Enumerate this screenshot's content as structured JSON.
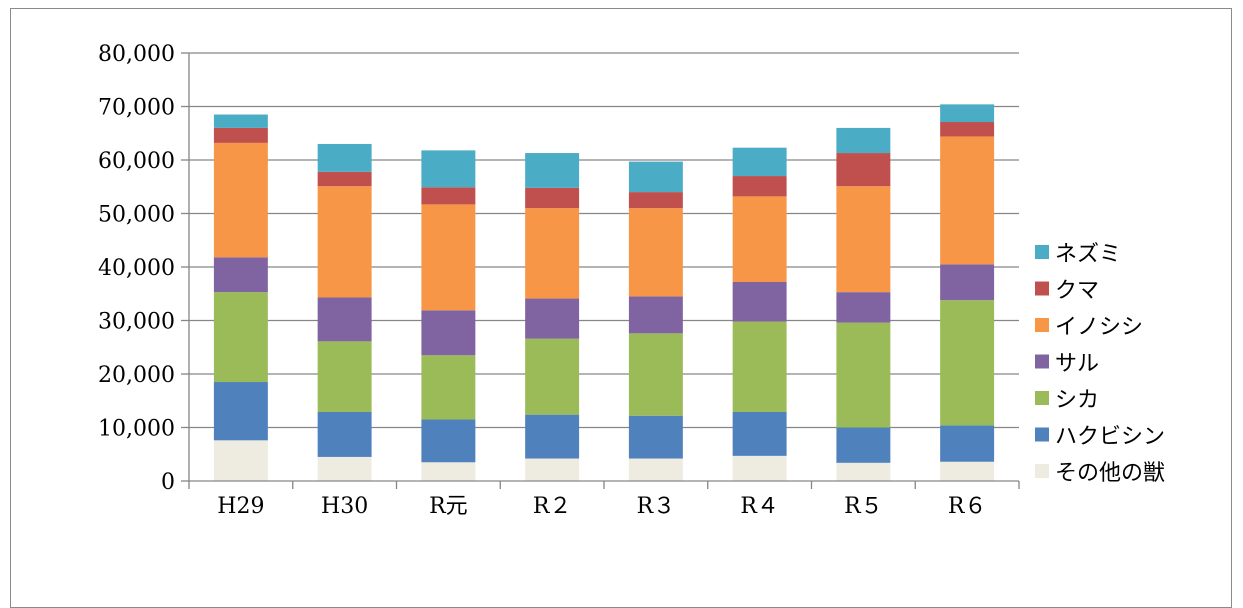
{
  "chart_data": {
    "type": "bar",
    "stacked": true,
    "title": "",
    "xlabel": "",
    "ylabel": "",
    "ylim": [
      0,
      80000
    ],
    "yticks": [
      0,
      10000,
      20000,
      30000,
      40000,
      50000,
      60000,
      70000,
      80000
    ],
    "ytick_labels": [
      "0",
      "10,000",
      "20,000",
      "30,000",
      "40,000",
      "50,000",
      "60,000",
      "70,000",
      "80,000"
    ],
    "grid": true,
    "legend_position": "right",
    "categories": [
      "H29",
      "H30",
      "R元",
      "R２",
      "R３",
      "R４",
      "R５",
      "R６"
    ],
    "series": [
      {
        "name": "その他の獣",
        "color": "#eeece1",
        "values": [
          7600,
          4500,
          3500,
          4200,
          4200,
          4700,
          3400,
          3600
        ]
      },
      {
        "name": "ハクビシン",
        "color": "#4f81bd",
        "values": [
          10900,
          8400,
          8000,
          8200,
          8000,
          8200,
          6600,
          6800
        ]
      },
      {
        "name": "シカ",
        "color": "#9bbb59",
        "values": [
          16800,
          13200,
          12000,
          14200,
          15400,
          16900,
          19600,
          23400
        ]
      },
      {
        "name": "サル",
        "color": "#8064a2",
        "values": [
          6500,
          8200,
          8400,
          7500,
          6900,
          7400,
          5700,
          6700
        ]
      },
      {
        "name": "イノシシ",
        "color": "#f79646",
        "values": [
          21400,
          20800,
          19800,
          16900,
          16500,
          16000,
          19800,
          23900
        ]
      },
      {
        "name": "クマ",
        "color": "#c0504d",
        "values": [
          2800,
          2700,
          3200,
          3800,
          3000,
          3800,
          6200,
          2700
        ]
      },
      {
        "name": "ネズミ",
        "color": "#4bacc6",
        "values": [
          2500,
          5200,
          6900,
          6500,
          5700,
          5300,
          4700,
          3300
        ]
      }
    ]
  }
}
